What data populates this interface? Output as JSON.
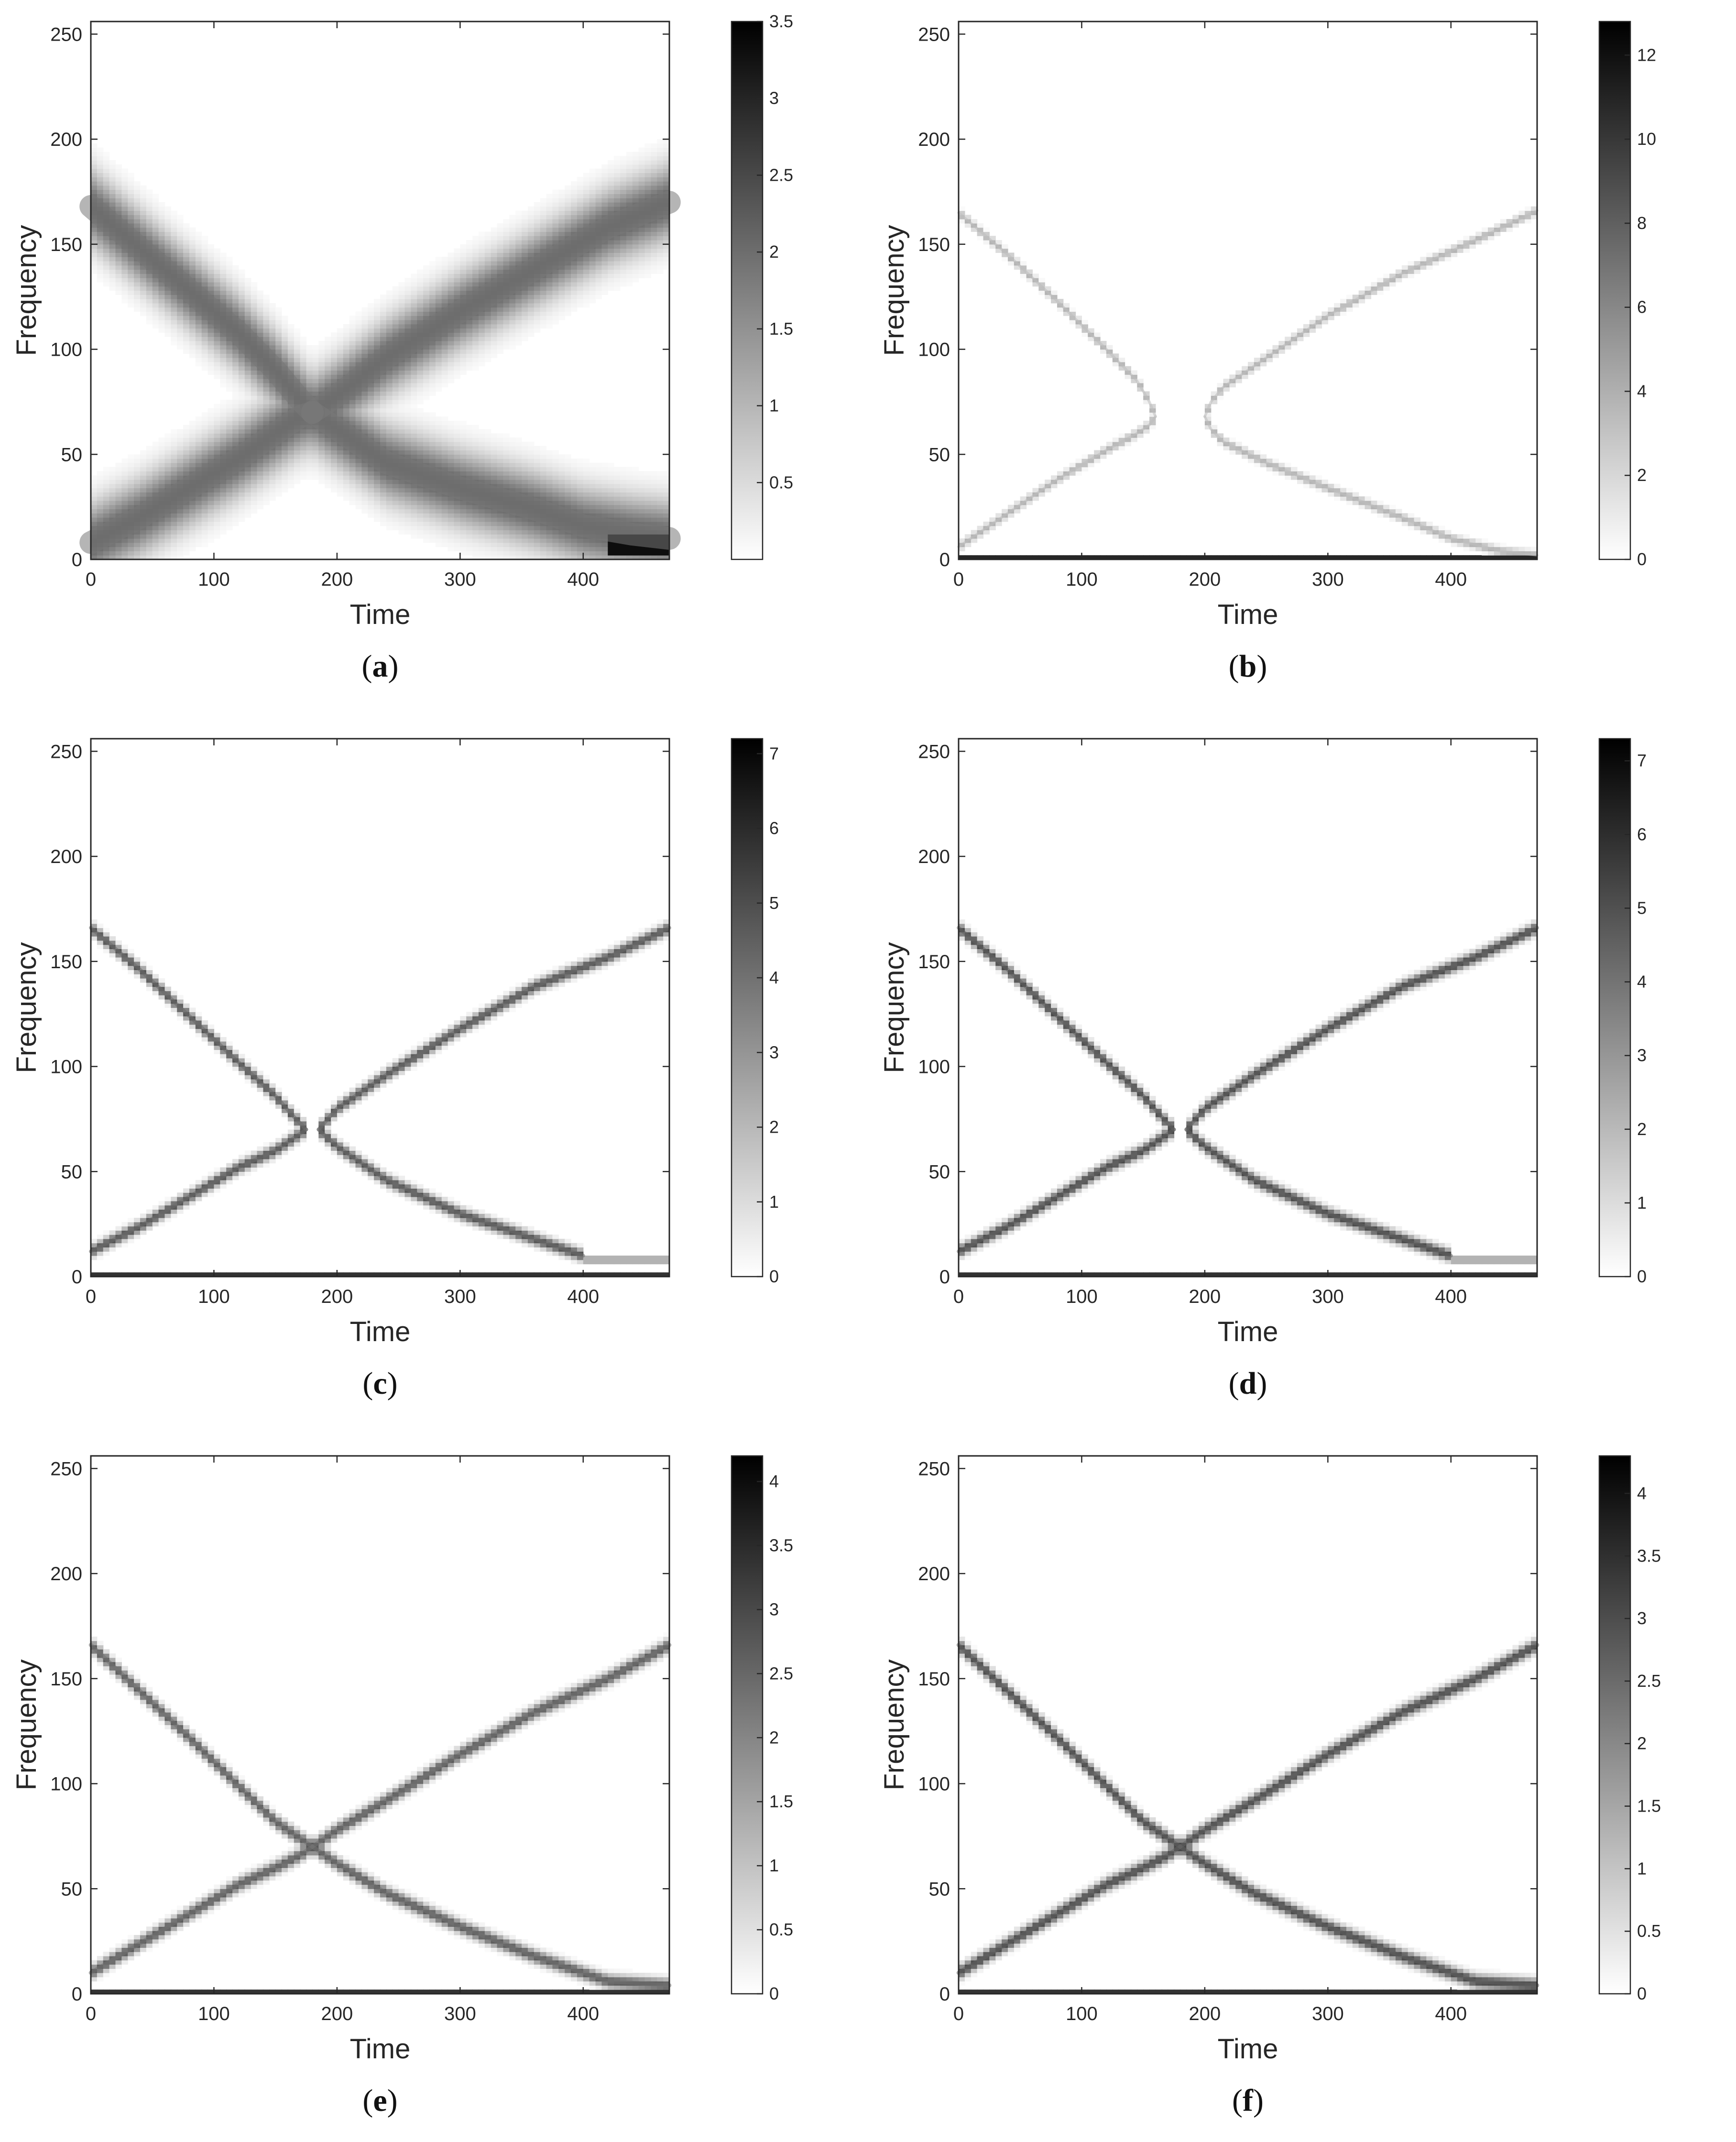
{
  "chart_data": [
    {
      "type": "heatmap",
      "id": "a",
      "caption_letter": "a",
      "xlabel": "Time",
      "ylabel": "Frequency",
      "xlim": [
        0,
        470
      ],
      "ylim": [
        0,
        256
      ],
      "xticks": [
        "0",
        "100",
        "200",
        "300",
        "400"
      ],
      "xtick_values": [
        0,
        100,
        200,
        300,
        400
      ],
      "yticks": [
        "0",
        "50",
        "100",
        "150",
        "200",
        "250"
      ],
      "ytick_values": [
        0,
        50,
        100,
        150,
        200,
        250
      ],
      "colormap": "gray-reversed",
      "colorbar": {
        "min": 0,
        "max": 3.5,
        "ticks": [
          "0.5",
          "1",
          "1.5",
          "2",
          "2.5",
          "3",
          "3.5"
        ],
        "tick_values": [
          0.5,
          1,
          1.5,
          2,
          2.5,
          3,
          3.5
        ]
      },
      "ridge_width": 12,
      "ridge_intensity": 0.62,
      "ridges": [
        {
          "x": [
            0,
            40,
            80,
            120,
            150,
            170,
            180
          ],
          "y": [
            168,
            148,
            128,
            108,
            90,
            76,
            70
          ]
        },
        {
          "x": [
            0,
            40,
            80,
            120,
            150,
            170,
            180
          ],
          "y": [
            8,
            20,
            34,
            48,
            60,
            68,
            70
          ]
        },
        {
          "x": [
            180,
            200,
            240,
            300,
            360,
            420,
            470
          ],
          "y": [
            70,
            78,
            96,
            118,
            138,
            158,
            170
          ]
        },
        {
          "x": [
            180,
            200,
            240,
            300,
            360,
            400,
            440,
            470
          ],
          "y": [
            70,
            62,
            46,
            34,
            24,
            16,
            12,
            10
          ]
        }
      ],
      "spots": [
        {
          "x": [
            420,
            470
          ],
          "y": [
            2,
            12
          ],
          "intensity": 0.95
        }
      ]
    },
    {
      "type": "heatmap",
      "id": "b",
      "caption_letter": "b",
      "xlabel": "Time",
      "ylabel": "Frequency",
      "xlim": [
        0,
        470
      ],
      "ylim": [
        0,
        256
      ],
      "xticks": [
        "0",
        "100",
        "200",
        "300",
        "400"
      ],
      "xtick_values": [
        0,
        100,
        200,
        300,
        400
      ],
      "yticks": [
        "0",
        "50",
        "100",
        "150",
        "200",
        "250"
      ],
      "ytick_values": [
        0,
        50,
        100,
        150,
        200,
        250
      ],
      "colormap": "gray-reversed",
      "colorbar": {
        "min": 0,
        "max": 12.8,
        "ticks": [
          "0",
          "2",
          "4",
          "6",
          "8",
          "10",
          "12"
        ],
        "tick_values": [
          0,
          2,
          4,
          6,
          8,
          10,
          12
        ]
      },
      "ridge_width": 1.4,
      "ridge_intensity": 0.3,
      "ridges": [
        {
          "x": [
            0,
            40,
            80,
            120,
            145,
            155,
            160
          ],
          "y": [
            165,
            145,
            123,
            100,
            85,
            75,
            68
          ]
        },
        {
          "x": [
            0,
            40,
            80,
            120,
            145,
            155,
            160
          ],
          "y": [
            6,
            22,
            38,
            52,
            60,
            64,
            68
          ]
        },
        {
          "x": [
            200,
            205,
            215,
            250,
            300,
            360,
            420,
            470
          ],
          "y": [
            68,
            75,
            82,
            96,
            116,
            136,
            152,
            166
          ]
        },
        {
          "x": [
            200,
            205,
            215,
            250,
            300,
            360,
            400,
            440,
            470
          ],
          "y": [
            68,
            62,
            56,
            46,
            34,
            20,
            10,
            4,
            2
          ]
        }
      ],
      "spots": [
        {
          "x": [
            0,
            470
          ],
          "y": [
            0,
            1.2
          ],
          "intensity": 0.85
        }
      ]
    },
    {
      "type": "heatmap",
      "id": "c",
      "caption_letter": "c",
      "xlabel": "Time",
      "ylabel": "Frequency",
      "xlim": [
        0,
        470
      ],
      "ylim": [
        0,
        256
      ],
      "xticks": [
        "0",
        "100",
        "200",
        "300",
        "400"
      ],
      "xtick_values": [
        0,
        100,
        200,
        300,
        400
      ],
      "yticks": [
        "0",
        "50",
        "100",
        "150",
        "200",
        "250"
      ],
      "ytick_values": [
        0,
        50,
        100,
        150,
        200,
        250
      ],
      "colormap": "gray-reversed",
      "colorbar": {
        "min": 0,
        "max": 7.2,
        "ticks": [
          "0",
          "1",
          "2",
          "3",
          "4",
          "5",
          "6",
          "7"
        ],
        "tick_values": [
          0,
          1,
          2,
          3,
          4,
          5,
          6,
          7
        ]
      },
      "ridge_width": 2,
      "ridge_intensity": 0.68,
      "ridges": [
        {
          "x": [
            0,
            40,
            80,
            120,
            150,
            165,
            175
          ],
          "y": [
            166,
            146,
            124,
            102,
            86,
            76,
            70
          ]
        },
        {
          "x": [
            0,
            40,
            80,
            120,
            150,
            165,
            175
          ],
          "y": [
            12,
            24,
            38,
            52,
            60,
            66,
            70
          ]
        },
        {
          "x": [
            185,
            200,
            240,
            300,
            360,
            420,
            470
          ],
          "y": [
            70,
            80,
            96,
            118,
            138,
            152,
            166
          ]
        },
        {
          "x": [
            185,
            200,
            240,
            300,
            360,
            400
          ],
          "y": [
            70,
            62,
            46,
            30,
            18,
            10
          ]
        }
      ],
      "spots": [
        {
          "x": [
            400,
            470
          ],
          "y": [
            7,
            9
          ],
          "intensity": 0.3
        },
        {
          "x": [
            0,
            470
          ],
          "y": [
            0,
            1
          ],
          "intensity": 0.8
        }
      ]
    },
    {
      "type": "heatmap",
      "id": "d",
      "caption_letter": "d",
      "xlabel": "Time",
      "ylabel": "Frequency",
      "xlim": [
        0,
        470
      ],
      "ylim": [
        0,
        256
      ],
      "xticks": [
        "0",
        "100",
        "200",
        "300",
        "400"
      ],
      "xtick_values": [
        0,
        100,
        200,
        300,
        400
      ],
      "yticks": [
        "0",
        "50",
        "100",
        "150",
        "200",
        "250"
      ],
      "ytick_values": [
        0,
        50,
        100,
        150,
        200,
        250
      ],
      "colormap": "gray-reversed",
      "colorbar": {
        "min": 0,
        "max": 7.3,
        "ticks": [
          "0",
          "1",
          "2",
          "3",
          "4",
          "5",
          "6",
          "7"
        ],
        "tick_values": [
          0,
          1,
          2,
          3,
          4,
          5,
          6,
          7
        ]
      },
      "ridge_width": 2,
      "ridge_intensity": 0.72,
      "ridges": [
        {
          "x": [
            0,
            40,
            80,
            120,
            150,
            165,
            175
          ],
          "y": [
            166,
            146,
            124,
            102,
            86,
            76,
            70
          ]
        },
        {
          "x": [
            0,
            40,
            80,
            120,
            150,
            165,
            175
          ],
          "y": [
            12,
            24,
            38,
            52,
            60,
            66,
            70
          ]
        },
        {
          "x": [
            185,
            200,
            240,
            300,
            360,
            420,
            470
          ],
          "y": [
            70,
            80,
            96,
            118,
            138,
            152,
            166
          ]
        },
        {
          "x": [
            185,
            200,
            240,
            300,
            360,
            400
          ],
          "y": [
            70,
            62,
            46,
            30,
            18,
            10
          ]
        }
      ],
      "spots": [
        {
          "x": [
            400,
            470
          ],
          "y": [
            7,
            9
          ],
          "intensity": 0.3
        },
        {
          "x": [
            0,
            470
          ],
          "y": [
            0,
            1
          ],
          "intensity": 0.8
        }
      ]
    },
    {
      "type": "heatmap",
      "id": "e",
      "caption_letter": "e",
      "xlabel": "Time",
      "ylabel": "Frequency",
      "xlim": [
        0,
        470
      ],
      "ylim": [
        0,
        256
      ],
      "xticks": [
        "0",
        "100",
        "200",
        "300",
        "400"
      ],
      "xtick_values": [
        0,
        100,
        200,
        300,
        400
      ],
      "yticks": [
        "0",
        "50",
        "100",
        "150",
        "200",
        "250"
      ],
      "ytick_values": [
        0,
        50,
        100,
        150,
        200,
        250
      ],
      "colormap": "gray-reversed",
      "colorbar": {
        "min": 0,
        "max": 4.2,
        "ticks": [
          "0",
          "0.5",
          "1",
          "1.5",
          "2",
          "2.5",
          "3",
          "3.5",
          "4"
        ],
        "tick_values": [
          0,
          0.5,
          1,
          1.5,
          2,
          2.5,
          3,
          3.5,
          4
        ]
      },
      "ridge_width": 2.2,
      "ridge_intensity": 0.65,
      "ridges": [
        {
          "x": [
            0,
            40,
            80,
            120,
            150,
            170,
            180
          ],
          "y": [
            166,
            144,
            122,
            99,
            82,
            74,
            70
          ]
        },
        {
          "x": [
            0,
            40,
            80,
            120,
            150,
            170,
            180
          ],
          "y": [
            10,
            24,
            38,
            52,
            60,
            66,
            70
          ]
        },
        {
          "x": [
            180,
            200,
            240,
            300,
            360,
            420,
            470
          ],
          "y": [
            70,
            78,
            92,
            114,
            134,
            150,
            166
          ]
        },
        {
          "x": [
            180,
            200,
            240,
            300,
            360,
            420,
            470
          ],
          "y": [
            70,
            62,
            48,
            32,
            18,
            6,
            4
          ]
        }
      ],
      "spots": [
        {
          "x": [
            0,
            470
          ],
          "y": [
            0,
            1
          ],
          "intensity": 0.8
        }
      ]
    },
    {
      "type": "heatmap",
      "id": "f",
      "caption_letter": "f",
      "xlabel": "Time",
      "ylabel": "Frequency",
      "xlim": [
        0,
        470
      ],
      "ylim": [
        0,
        256
      ],
      "xticks": [
        "0",
        "100",
        "200",
        "300",
        "400"
      ],
      "xtick_values": [
        0,
        100,
        200,
        300,
        400
      ],
      "yticks": [
        "0",
        "50",
        "100",
        "150",
        "200",
        "250"
      ],
      "ytick_values": [
        0,
        50,
        100,
        150,
        200,
        250
      ],
      "colormap": "gray-reversed",
      "colorbar": {
        "min": 0,
        "max": 4.3,
        "ticks": [
          "0",
          "0.5",
          "1",
          "1.5",
          "2",
          "2.5",
          "3",
          "3.5",
          "4"
        ],
        "tick_values": [
          0,
          0.5,
          1,
          1.5,
          2,
          2.5,
          3,
          3.5,
          4
        ]
      },
      "ridge_width": 2.2,
      "ridge_intensity": 0.72,
      "ridges": [
        {
          "x": [
            0,
            40,
            80,
            120,
            150,
            170,
            180
          ],
          "y": [
            166,
            144,
            122,
            99,
            82,
            74,
            70
          ]
        },
        {
          "x": [
            0,
            40,
            80,
            120,
            150,
            170,
            180
          ],
          "y": [
            10,
            24,
            38,
            52,
            60,
            66,
            70
          ]
        },
        {
          "x": [
            180,
            200,
            240,
            300,
            360,
            420,
            470
          ],
          "y": [
            70,
            78,
            92,
            114,
            134,
            150,
            166
          ]
        },
        {
          "x": [
            180,
            200,
            240,
            300,
            360,
            420,
            470
          ],
          "y": [
            70,
            62,
            48,
            32,
            18,
            6,
            4
          ]
        }
      ],
      "spots": [
        {
          "x": [
            0,
            470
          ],
          "y": [
            0,
            1
          ],
          "intensity": 0.8
        }
      ]
    }
  ]
}
